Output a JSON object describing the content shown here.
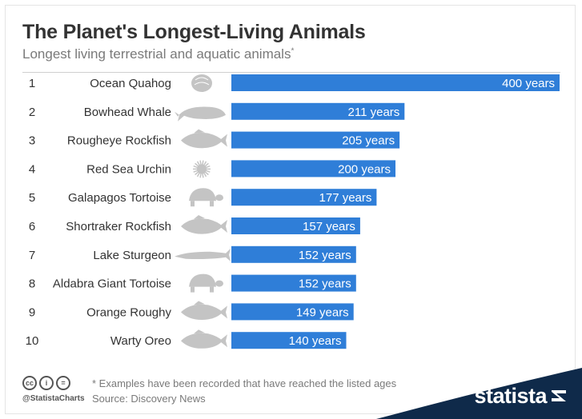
{
  "header": {
    "title": "The Planet's Longest-Living Animals",
    "subtitle": "Longest living terrestrial and aquatic animals",
    "subtitle_mark": "*"
  },
  "chart_data": {
    "type": "bar",
    "orientation": "horizontal",
    "categories": [
      "Ocean Quahog",
      "Bowhead Whale",
      "Rougheye Rockfish",
      "Red Sea Urchin",
      "Galapagos Tortoise",
      "Shortraker Rockfish",
      "Lake Sturgeon",
      "Aldabra Giant Tortoise",
      "Orange Roughy",
      "Warty Oreo"
    ],
    "ranks": [
      "1",
      "2",
      "3",
      "4",
      "5",
      "6",
      "7",
      "8",
      "9",
      "10"
    ],
    "values": [
      400,
      211,
      205,
      200,
      177,
      157,
      152,
      152,
      149,
      140
    ],
    "data_labels": [
      "400 years",
      "211 years",
      "205 years",
      "200 years",
      "177 years",
      "157 years",
      "152 years",
      "152 years",
      "149 years",
      "140 years"
    ],
    "icons": [
      "clam-icon",
      "whale-icon",
      "fish-icon",
      "urchin-icon",
      "tortoise-icon",
      "fish-icon",
      "sturgeon-icon",
      "tortoise-icon",
      "fish-icon",
      "fish-icon"
    ],
    "bar_color": "#2f7ed8",
    "icon_color": "#c4c4c4",
    "xlim": [
      0,
      400
    ],
    "grid": false
  },
  "footer": {
    "note": "* Examples have been recorded that have reached the listed ages",
    "source": "Source: Discovery News",
    "handle": "@StatistaCharts",
    "cc_icons": [
      "cc",
      "i",
      "="
    ],
    "brand": "statista"
  },
  "colors": {
    "title": "#333333",
    "subtitle": "#7a7a7a",
    "brand_bg": "#0f2a4a"
  }
}
